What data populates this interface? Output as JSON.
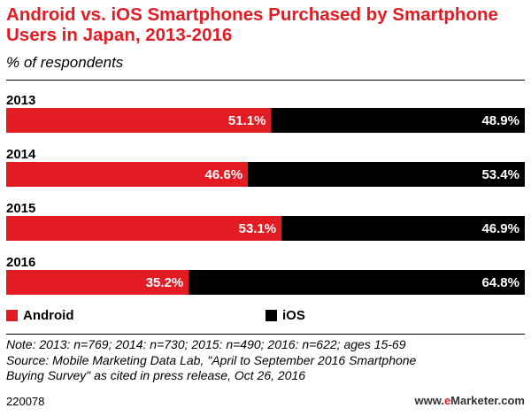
{
  "header": {
    "title": "Android vs. iOS Smartphones Purchased by Smartphone Users in Japan, 2013-2016",
    "subtitle": "% of respondents"
  },
  "legend": {
    "android_label": "Android",
    "ios_label": "iOS"
  },
  "footer": {
    "note_line1": "Note: 2013: n=769; 2014: n=730; 2015: n=490; 2016: n=622; ages 15-69",
    "note_line2": "Source: Mobile Marketing Data Lab, \"April to September 2016 Smartphone",
    "note_line3": "Buying Survey\" as cited in press release, Oct 26, 2016",
    "chart_id": "220078",
    "brand_prefix": "www.",
    "brand_e": "e",
    "brand_rest": "Marketer.com"
  },
  "colors": {
    "android": "#e31b23",
    "ios": "#000000",
    "title": "#e31b23"
  },
  "chart_data": {
    "type": "bar",
    "orientation": "horizontal",
    "stacked": true,
    "categories": [
      "2013",
      "2014",
      "2015",
      "2016"
    ],
    "series": [
      {
        "name": "Android",
        "values": [
          51.1,
          46.6,
          53.1,
          35.2
        ],
        "labels": [
          "51.1%",
          "46.6%",
          "53.1%",
          "35.2%"
        ]
      },
      {
        "name": "iOS",
        "values": [
          48.9,
          53.4,
          46.9,
          64.8
        ],
        "labels": [
          "48.9%",
          "53.4%",
          "46.9%",
          "64.8%"
        ]
      }
    ],
    "xlim": [
      0,
      100
    ],
    "legend_position": "bottom-left",
    "grid": false
  }
}
